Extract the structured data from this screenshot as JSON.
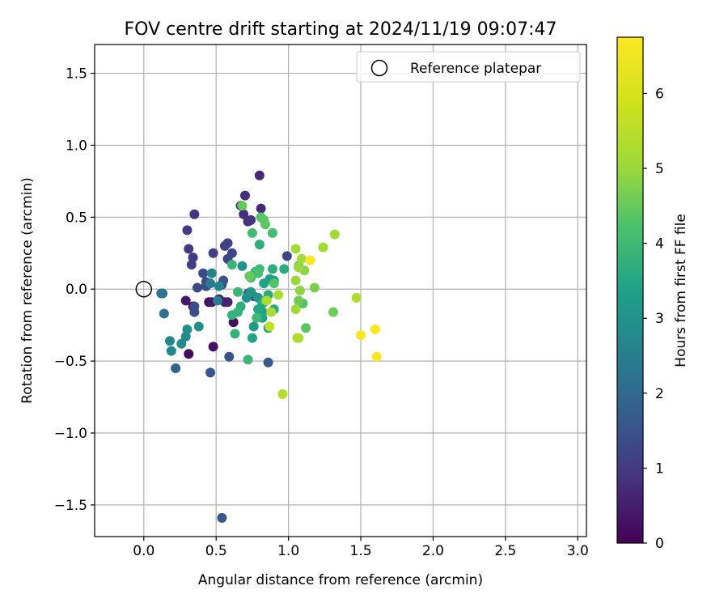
{
  "chart_data": {
    "type": "scatter",
    "title": "FOV centre drift starting at 2024/11/19 09:07:47",
    "xlabel": "Angular distance from reference (arcmin)",
    "ylabel": "Rotation from reference (arcmin)",
    "xlim": [
      -0.34,
      3.06
    ],
    "ylim": [
      -1.72,
      1.7
    ],
    "x_ticks": [
      0.0,
      0.5,
      1.0,
      1.5,
      2.0,
      2.5,
      3.0
    ],
    "x_tick_labels": [
      "0.0",
      "0.5",
      "1.0",
      "1.5",
      "2.0",
      "2.5",
      "3.0"
    ],
    "y_ticks": [
      -1.5,
      -1.0,
      -0.5,
      0.0,
      0.5,
      1.0,
      1.5
    ],
    "y_tick_labels": [
      "−1.5",
      "−1.0",
      "−0.5",
      "0.0",
      "0.5",
      "1.0",
      "1.5"
    ],
    "grid": true,
    "legend": {
      "placement": "top-right",
      "entries": [
        {
          "label": "Reference platepar",
          "marker": "open-circle",
          "x": 0.0,
          "y": 0.0
        }
      ]
    },
    "colorbar": {
      "label": "Hours from first FF file",
      "colormap": "viridis",
      "range": [
        0,
        6.75
      ],
      "ticks": [
        0,
        1,
        2,
        3,
        4,
        5,
        6
      ],
      "tick_labels": [
        "0",
        "1",
        "2",
        "3",
        "4",
        "5",
        "6"
      ]
    },
    "points": [
      {
        "x": 0.31,
        "y": -0.45,
        "c": 0.1
      },
      {
        "x": 0.34,
        "y": -0.12,
        "c": 0.1
      },
      {
        "x": 0.45,
        "y": -0.09,
        "c": 0.2
      },
      {
        "x": 0.62,
        "y": -0.23,
        "c": 0.2
      },
      {
        "x": 0.48,
        "y": -0.4,
        "c": 0.3
      },
      {
        "x": 0.29,
        "y": -0.08,
        "c": 0.4
      },
      {
        "x": 0.47,
        "y": -0.09,
        "c": 0.4
      },
      {
        "x": 0.52,
        "y": -0.07,
        "c": 0.5
      },
      {
        "x": 0.56,
        "y": -0.09,
        "c": 0.5
      },
      {
        "x": 0.58,
        "y": -0.09,
        "c": 0.6
      },
      {
        "x": 0.8,
        "y": 0.79,
        "c": 0.7
      },
      {
        "x": 0.81,
        "y": 0.56,
        "c": 0.7
      },
      {
        "x": 0.7,
        "y": 0.65,
        "c": 0.8
      },
      {
        "x": 0.69,
        "y": 0.52,
        "c": 0.8
      },
      {
        "x": 0.72,
        "y": 0.47,
        "c": 0.8
      },
      {
        "x": 0.74,
        "y": 0.48,
        "c": 0.9
      },
      {
        "x": 0.67,
        "y": 0.58,
        "c": 0.9
      },
      {
        "x": 0.35,
        "y": 0.52,
        "c": 0.9
      },
      {
        "x": 0.3,
        "y": 0.41,
        "c": 1.0
      },
      {
        "x": 0.31,
        "y": 0.28,
        "c": 1.0
      },
      {
        "x": 0.34,
        "y": 0.22,
        "c": 1.0
      },
      {
        "x": 0.33,
        "y": 0.17,
        "c": 1.1
      },
      {
        "x": 0.48,
        "y": 0.25,
        "c": 1.1
      },
      {
        "x": 0.56,
        "y": 0.3,
        "c": 1.1
      },
      {
        "x": 0.58,
        "y": 0.32,
        "c": 1.2
      },
      {
        "x": 0.61,
        "y": 0.25,
        "c": 1.2
      },
      {
        "x": 0.58,
        "y": 0.21,
        "c": 1.2
      },
      {
        "x": 0.41,
        "y": 0.11,
        "c": 1.3
      },
      {
        "x": 0.43,
        "y": 0.05,
        "c": 1.3
      },
      {
        "x": 0.37,
        "y": 0.01,
        "c": 1.3
      },
      {
        "x": 0.43,
        "y": 0.02,
        "c": 1.4
      },
      {
        "x": 0.35,
        "y": -0.12,
        "c": 1.4
      },
      {
        "x": 0.35,
        "y": -0.16,
        "c": 1.4
      },
      {
        "x": 0.55,
        "y": 0.06,
        "c": 1.5
      },
      {
        "x": 0.54,
        "y": 0.03,
        "c": 1.5
      },
      {
        "x": 0.59,
        "y": -0.47,
        "c": 1.5
      },
      {
        "x": 0.46,
        "y": -0.58,
        "c": 1.6
      },
      {
        "x": 0.54,
        "y": -1.59,
        "c": 1.6
      },
      {
        "x": 0.86,
        "y": -0.51,
        "c": 1.6
      },
      {
        "x": 0.99,
        "y": 0.23,
        "c": 1.2
      },
      {
        "x": 0.76,
        "y": -0.05,
        "c": 1.7
      },
      {
        "x": 0.72,
        "y": -0.03,
        "c": 1.7
      },
      {
        "x": 0.22,
        "y": -0.55,
        "c": 1.9
      },
      {
        "x": 0.14,
        "y": -0.17,
        "c": 2.2
      },
      {
        "x": 0.13,
        "y": -0.03,
        "c": 2.1
      },
      {
        "x": 0.12,
        "y": -0.03,
        "c": 2.3
      },
      {
        "x": 0.46,
        "y": 0.04,
        "c": 2.4
      },
      {
        "x": 0.51,
        "y": -0.08,
        "c": 2.5
      },
      {
        "x": 0.52,
        "y": 0.02,
        "c": 2.6
      },
      {
        "x": 0.47,
        "y": 0.11,
        "c": 2.6
      },
      {
        "x": 0.18,
        "y": -0.36,
        "c": 2.7
      },
      {
        "x": 0.19,
        "y": -0.43,
        "c": 2.7
      },
      {
        "x": 0.26,
        "y": -0.38,
        "c": 2.8
      },
      {
        "x": 0.29,
        "y": -0.33,
        "c": 2.8
      },
      {
        "x": 0.3,
        "y": -0.28,
        "c": 2.9
      },
      {
        "x": 0.38,
        "y": -0.26,
        "c": 2.9
      },
      {
        "x": 0.68,
        "y": 0.16,
        "c": 3.0
      },
      {
        "x": 0.71,
        "y": -0.06,
        "c": 3.0
      },
      {
        "x": 0.74,
        "y": -0.02,
        "c": 3.1
      },
      {
        "x": 0.79,
        "y": -0.06,
        "c": 3.1
      },
      {
        "x": 0.76,
        "y": -0.26,
        "c": 3.2
      },
      {
        "x": 0.8,
        "y": -0.19,
        "c": 3.2
      },
      {
        "x": 0.82,
        "y": -0.16,
        "c": 3.2
      },
      {
        "x": 0.86,
        "y": -0.27,
        "c": 3.3
      },
      {
        "x": 0.87,
        "y": 0.07,
        "c": 3.3
      },
      {
        "x": 0.9,
        "y": 0.06,
        "c": 3.3
      },
      {
        "x": 0.83,
        "y": 0.04,
        "c": 3.4
      },
      {
        "x": 0.75,
        "y": -0.34,
        "c": 3.4
      },
      {
        "x": 0.79,
        "y": -0.14,
        "c": 3.5
      },
      {
        "x": 0.82,
        "y": -0.1,
        "c": 3.5
      },
      {
        "x": 0.82,
        "y": -0.2,
        "c": 3.5
      },
      {
        "x": 0.86,
        "y": -0.04,
        "c": 3.6
      },
      {
        "x": 0.9,
        "y": -0.14,
        "c": 3.6
      },
      {
        "x": 0.97,
        "y": 0.14,
        "c": 3.6
      },
      {
        "x": 0.89,
        "y": 0.14,
        "c": 3.7
      },
      {
        "x": 0.8,
        "y": 0.31,
        "c": 3.7
      },
      {
        "x": 0.67,
        "y": -0.12,
        "c": 3.7
      },
      {
        "x": 0.65,
        "y": -0.16,
        "c": 3.8
      },
      {
        "x": 0.61,
        "y": -0.18,
        "c": 3.8
      },
      {
        "x": 0.63,
        "y": -0.31,
        "c": 3.8
      },
      {
        "x": 0.72,
        "y": -0.49,
        "c": 3.9
      },
      {
        "x": 0.65,
        "y": -0.02,
        "c": 3.9
      },
      {
        "x": 0.61,
        "y": 0.17,
        "c": 3.9
      },
      {
        "x": 0.74,
        "y": 0.08,
        "c": 4.0
      },
      {
        "x": 0.77,
        "y": 0.12,
        "c": 4.0
      },
      {
        "x": 0.8,
        "y": 0.14,
        "c": 4.0
      },
      {
        "x": 0.78,
        "y": -0.2,
        "c": 4.0
      },
      {
        "x": 0.75,
        "y": 0.39,
        "c": 4.1
      },
      {
        "x": 0.89,
        "y": 0.39,
        "c": 4.1
      },
      {
        "x": 0.79,
        "y": 0.11,
        "c": 4.2
      },
      {
        "x": 0.84,
        "y": -0.08,
        "c": 4.2
      },
      {
        "x": 0.9,
        "y": 0.04,
        "c": 4.3
      },
      {
        "x": 0.81,
        "y": 0.5,
        "c": 4.3
      },
      {
        "x": 0.83,
        "y": 0.48,
        "c": 4.4
      },
      {
        "x": 0.84,
        "y": 0.45,
        "c": 4.4
      },
      {
        "x": 0.68,
        "y": 0.58,
        "c": 4.5
      },
      {
        "x": 0.73,
        "y": 0.09,
        "c": 4.5
      },
      {
        "x": 1.07,
        "y": 0.16,
        "c": 4.2
      },
      {
        "x": 1.12,
        "y": -0.27,
        "c": 4.4
      },
      {
        "x": 1.1,
        "y": -0.1,
        "c": 4.3
      },
      {
        "x": 1.07,
        "y": -0.08,
        "c": 4.6
      },
      {
        "x": 1.31,
        "y": -0.16,
        "c": 4.6
      },
      {
        "x": 1.18,
        "y": 0.01,
        "c": 4.7
      },
      {
        "x": 1.08,
        "y": -0.01,
        "c": 4.9
      },
      {
        "x": 1.11,
        "y": 0.13,
        "c": 4.9
      },
      {
        "x": 1.05,
        "y": 0.06,
        "c": 5.0
      },
      {
        "x": 1.07,
        "y": 0.15,
        "c": 5.0
      },
      {
        "x": 1.09,
        "y": 0.21,
        "c": 5.1
      },
      {
        "x": 1.05,
        "y": 0.28,
        "c": 5.1
      },
      {
        "x": 1.24,
        "y": 0.29,
        "c": 5.1
      },
      {
        "x": 1.32,
        "y": 0.38,
        "c": 5.1
      },
      {
        "x": 0.93,
        "y": -0.04,
        "c": 5.2
      },
      {
        "x": 0.88,
        "y": -0.16,
        "c": 5.2
      },
      {
        "x": 0.85,
        "y": -0.08,
        "c": 5.3
      },
      {
        "x": 1.05,
        "y": -0.14,
        "c": 5.1
      },
      {
        "x": 1.06,
        "y": -0.34,
        "c": 5.2
      },
      {
        "x": 1.07,
        "y": -0.34,
        "c": 5.3
      },
      {
        "x": 1.47,
        "y": -0.06,
        "c": 5.3
      },
      {
        "x": 0.96,
        "y": -0.73,
        "c": 5.4
      },
      {
        "x": 0.87,
        "y": -0.26,
        "c": 5.6
      },
      {
        "x": 1.15,
        "y": 0.2,
        "c": 6.7
      },
      {
        "x": 1.5,
        "y": -0.32,
        "c": 6.7
      },
      {
        "x": 1.6,
        "y": -0.28,
        "c": 6.7
      },
      {
        "x": 1.61,
        "y": -0.47,
        "c": 6.7
      }
    ]
  }
}
